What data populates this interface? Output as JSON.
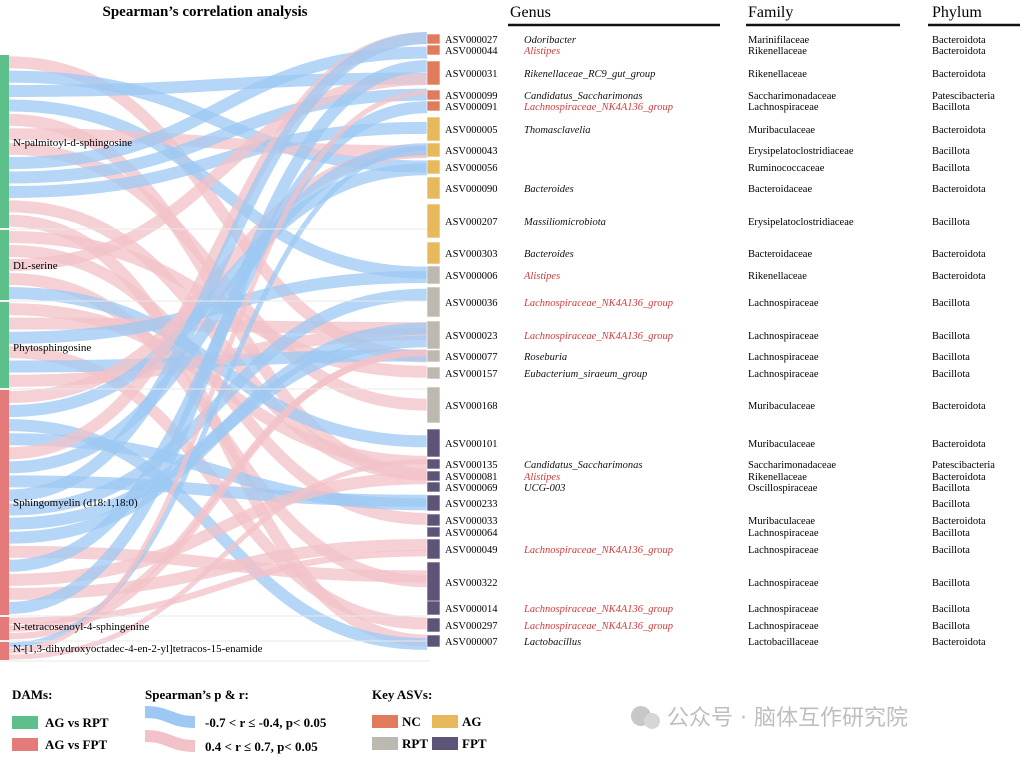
{
  "title": "Spearman’s correlation analysis",
  "headers": {
    "genus": "Genus",
    "family": "Family",
    "phylum": "Phylum"
  },
  "colors": {
    "AG_vs_RPT": "#5dbf8a",
    "AG_vs_FPT": "#e47a7a",
    "neg_link": "#9cc8f3",
    "pos_link": "#f2c2c8",
    "NC": "#e07b5c",
    "AG": "#e7b95a",
    "RPT": "#bdb8b0",
    "FPT": "#5e5478",
    "red_text": "#d23a3a"
  },
  "metabolites": [
    {
      "name": "N-palmitoyl-d-sphingosine",
      "group": "AG_vs_RPT"
    },
    {
      "name": "DL-serine",
      "group": "AG_vs_RPT"
    },
    {
      "name": "Phytosphingosine",
      "group": "AG_vs_RPT"
    },
    {
      "name": "Sphingomyelin (d18:1,18:0)",
      "group": "AG_vs_FPT"
    },
    {
      "name": "N-tetracosenoyl-4-sphingenine",
      "group": "AG_vs_FPT"
    },
    {
      "name": "N-[1,3-dihydroxyoctadec-4-en-2-yl]tetracos-15-enamide",
      "group": "AG_vs_FPT"
    }
  ],
  "asvs": [
    {
      "id": "ASV000027",
      "key": "NC",
      "genus": "Odoribacter",
      "genus_red": false,
      "family": "Marinifilaceae",
      "phylum": "Bacteroidota"
    },
    {
      "id": "ASV000044",
      "key": "NC",
      "genus": "Alistipes",
      "genus_red": true,
      "family": "Rikenellaceae",
      "phylum": "Bacteroidota"
    },
    {
      "id": "ASV000031",
      "key": "NC",
      "genus": "Rikenellaceae_RC9_gut_group",
      "genus_red": false,
      "family": "Rikenellaceae",
      "phylum": "Bacteroidota"
    },
    {
      "id": "ASV000099",
      "key": "NC",
      "genus": "Candidatus_Saccharimonas",
      "genus_red": false,
      "family": "Saccharimonadaceae",
      "phylum": "Patescibacteria"
    },
    {
      "id": "ASV000091",
      "key": "NC",
      "genus": "Lachnospiraceae_NK4A136_group",
      "genus_red": true,
      "family": "Lachnospiraceae",
      "phylum": "Bacillota"
    },
    {
      "id": "ASV000005",
      "key": "AG",
      "genus": "Thomasclavelia",
      "genus_red": false,
      "family": "Muribaculaceae",
      "phylum": "Bacteroidota"
    },
    {
      "id": "ASV000043",
      "key": "AG",
      "genus": "",
      "genus_red": false,
      "family": "Erysipelatoclostridiaceae",
      "phylum": "Bacillota"
    },
    {
      "id": "ASV000056",
      "key": "AG",
      "genus": "",
      "genus_red": false,
      "family": "Ruminococcaceae",
      "phylum": "Bacillota"
    },
    {
      "id": "ASV000090",
      "key": "AG",
      "genus": "Bacteroides",
      "genus_red": false,
      "family": "Bacteroidaceae",
      "phylum": "Bacteroidota"
    },
    {
      "id": "ASV000207",
      "key": "AG",
      "genus": "Massiliomicrobiota",
      "genus_red": false,
      "family": "Erysipelatoclostridiaceae",
      "phylum": "Bacillota"
    },
    {
      "id": "ASV000303",
      "key": "AG",
      "genus": "Bacteroides",
      "genus_red": false,
      "family": "Bacteroidaceae",
      "phylum": "Bacteroidota"
    },
    {
      "id": "ASV000006",
      "key": "RPT",
      "genus": "Alistipes",
      "genus_red": true,
      "family": "Rikenellaceae",
      "phylum": "Bacteroidota"
    },
    {
      "id": "ASV000036",
      "key": "RPT",
      "genus": "Lachnospiraceae_NK4A136_group",
      "genus_red": true,
      "family": "Lachnospiraceae",
      "phylum": "Bacillota"
    },
    {
      "id": "ASV000023",
      "key": "RPT",
      "genus": "Lachnospiraceae_NK4A136_group",
      "genus_red": true,
      "family": "Lachnospiraceae",
      "phylum": "Bacillota"
    },
    {
      "id": "ASV000077",
      "key": "RPT",
      "genus": "Roseburia",
      "genus_red": false,
      "family": "Lachnospiraceae",
      "phylum": "Bacillota"
    },
    {
      "id": "ASV000157",
      "key": "RPT",
      "genus": "Eubacterium_siraeum_group",
      "genus_red": false,
      "family": "Lachnospiraceae",
      "phylum": "Bacillota"
    },
    {
      "id": "ASV000168",
      "key": "RPT",
      "genus": "",
      "genus_red": false,
      "family": "Muribaculaceae",
      "phylum": "Bacteroidota"
    },
    {
      "id": "ASV000101",
      "key": "FPT",
      "genus": "",
      "genus_red": false,
      "family": "Muribaculaceae",
      "phylum": "Bacteroidota"
    },
    {
      "id": "ASV000135",
      "key": "FPT",
      "genus": "Candidatus_Saccharimonas",
      "genus_red": false,
      "family": "Saccharimonadaceae",
      "phylum": "Patescibacteria"
    },
    {
      "id": "ASV000081",
      "key": "FPT",
      "genus": "Alistipes",
      "genus_red": true,
      "family": "Rikenellaceae",
      "phylum": "Bacteroidota"
    },
    {
      "id": "ASV000069",
      "key": "FPT",
      "genus": "UCG-003",
      "genus_red": false,
      "family": "Oscillospiraceae",
      "phylum": "Bacillota"
    },
    {
      "id": "ASV000233",
      "key": "FPT",
      "genus": "",
      "genus_red": false,
      "family": "",
      "phylum": "Bacillota"
    },
    {
      "id": "ASV000033",
      "key": "FPT",
      "genus": "",
      "genus_red": false,
      "family": "Muribaculaceae",
      "phylum": "Bacteroidota"
    },
    {
      "id": "ASV000064",
      "key": "FPT",
      "genus": "",
      "genus_red": false,
      "family": "Lachnospiraceae",
      "phylum": "Bacillota"
    },
    {
      "id": "ASV000049",
      "key": "FPT",
      "genus": "Lachnospiraceae_NK4A136_group",
      "genus_red": true,
      "family": "Lachnospiraceae",
      "phylum": "Bacillota"
    },
    {
      "id": "ASV000322",
      "key": "FPT",
      "genus": "",
      "genus_red": false,
      "family": "Lachnospiraceae",
      "phylum": "Bacillota"
    },
    {
      "id": "ASV000014",
      "key": "FPT",
      "genus": "Lachnospiraceae_NK4A136_group",
      "genus_red": true,
      "family": "Lachnospiraceae",
      "phylum": "Bacillota"
    },
    {
      "id": "ASV000297",
      "key": "FPT",
      "genus": "Lachnospiraceae_NK4A136_group",
      "genus_red": true,
      "family": "Lachnospiraceae",
      "phylum": "Bacillota"
    },
    {
      "id": "ASV000007",
      "key": "FPT",
      "genus": "Lactobacillus",
      "genus_red": false,
      "family": "Lactobacillaceae",
      "phylum": "Bacteroidota"
    }
  ],
  "legend": {
    "dams_title": "DAMs:",
    "dams": [
      {
        "label": "AG vs RPT",
        "color": "#5dbf8a"
      },
      {
        "label": "AG vs FPT",
        "color": "#e47a7a"
      }
    ],
    "spearman_title": "Spearman’s p & r:",
    "spearman": [
      {
        "label": "-0.7 < r ≤ -0.4, p< 0.05",
        "color": "#9cc8f3"
      },
      {
        "label": "0.4 < r ≤ 0.7, p< 0.05",
        "color": "#f2c2c8"
      }
    ],
    "key_title": "Key ASVs:",
    "keys": [
      {
        "label": "NC",
        "color": "#e07b5c"
      },
      {
        "label": "AG",
        "color": "#e7b95a"
      },
      {
        "label": "RPT",
        "color": "#bdb8b0"
      },
      {
        "label": "FPT",
        "color": "#5e5478"
      }
    ]
  },
  "watermark": "公众号 · 脑体互作研究院"
}
